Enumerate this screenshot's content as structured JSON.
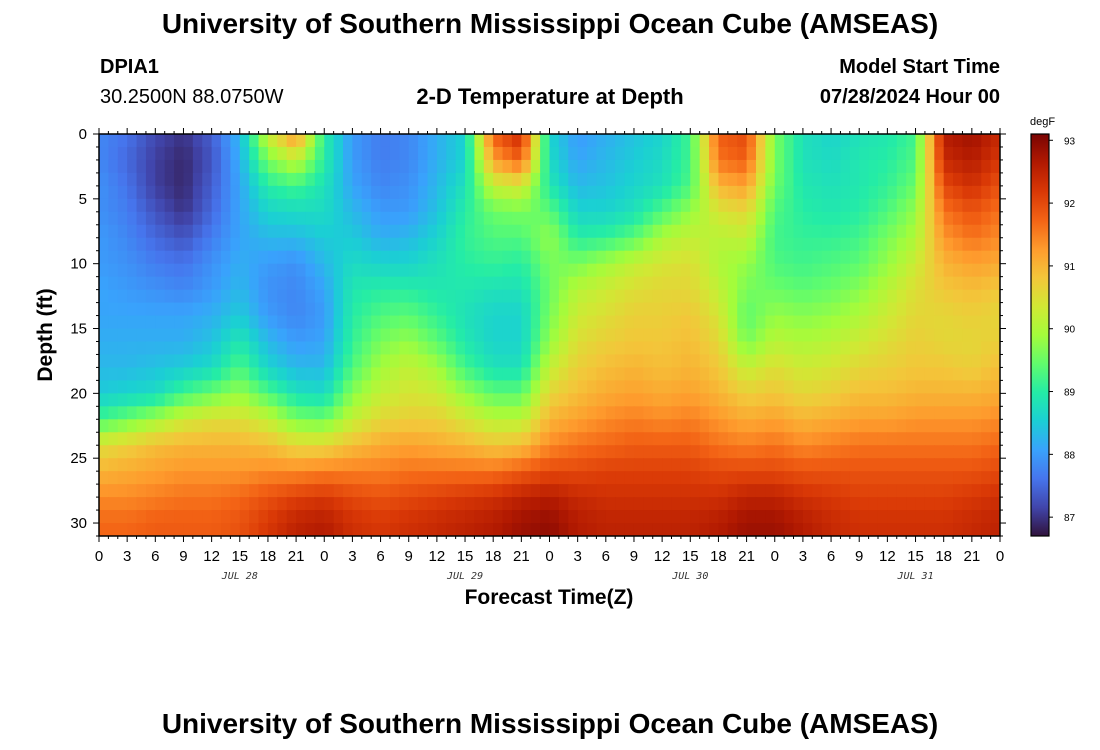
{
  "header": {
    "title": "University of Southern Mississippi Ocean Cube (AMSEAS)",
    "station_id": "DPIA1",
    "station_coords": "30.2500N  88.0750W",
    "subtitle": "2-D Temperature at Depth",
    "model_start_label": "Model Start Time",
    "model_start_value": "07/28/2024 Hour 00"
  },
  "footer": {
    "title": "University of Southern Mississippi Ocean Cube (AMSEAS)"
  },
  "chart_data": {
    "type": "heatmap",
    "title": "2-D Temperature at Depth",
    "xlabel": "Forecast Time(Z)",
    "ylabel": "Depth (ft)",
    "x_ticks": [
      "0",
      "3",
      "6",
      "9",
      "12",
      "15",
      "18",
      "21",
      "0",
      "3",
      "6",
      "9",
      "12",
      "15",
      "18",
      "21",
      "0",
      "3",
      "6",
      "9",
      "12",
      "15",
      "18",
      "21",
      "0",
      "3",
      "6",
      "9",
      "12",
      "15",
      "18",
      "21",
      "0"
    ],
    "date_labels": [
      {
        "label": "JUL 28",
        "hour": 15
      },
      {
        "label": "JUL 29",
        "hour": 39
      },
      {
        "label": "JUL 30",
        "hour": 63
      },
      {
        "label": "JUL 31",
        "hour": 87
      }
    ],
    "y_ticks": [
      0,
      5,
      10,
      15,
      20,
      25,
      30
    ],
    "xlim_hours": [
      0,
      96
    ],
    "ylim_ft": [
      0,
      31
    ],
    "colorbar": {
      "unit": "degF",
      "min": 86.7,
      "max": 93.1,
      "ticks": [
        87,
        88,
        89,
        90,
        91,
        92,
        93
      ],
      "colors": [
        "#30123b",
        "#4145ab",
        "#4675ed",
        "#39a2fc",
        "#1bcfd4",
        "#24eca6",
        "#61fc6c",
        "#a4fc3b",
        "#d1e834",
        "#f3c63a",
        "#fe9b2d",
        "#f36315",
        "#d93806",
        "#b11901",
        "#7a0403"
      ]
    },
    "series_description": "Temperature (degF) by depth row and forecast hour",
    "depths_ft": [
      0,
      2,
      4,
      6,
      8,
      10,
      12,
      14,
      16,
      18,
      20,
      22,
      24,
      26,
      28,
      30
    ],
    "hours": [
      0,
      3,
      6,
      9,
      12,
      15,
      18,
      21,
      24,
      27,
      30,
      33,
      36,
      39,
      42,
      45,
      48,
      51,
      54,
      57,
      60,
      63,
      66,
      69,
      72,
      75,
      78,
      81,
      84,
      87,
      90,
      93,
      96
    ],
    "values": [
      [
        87.8,
        87.6,
        87.2,
        87.0,
        87.4,
        88.3,
        90.3,
        91.4,
        89.0,
        88.0,
        87.7,
        87.8,
        88.2,
        88.6,
        91.8,
        92.4,
        88.6,
        88.0,
        88.2,
        88.4,
        88.6,
        89.2,
        91.8,
        92.0,
        89.6,
        88.8,
        88.6,
        88.8,
        88.9,
        89.2,
        92.6,
        92.8,
        92.4
      ],
      [
        87.8,
        87.5,
        87.1,
        86.9,
        87.3,
        88.2,
        89.6,
        90.2,
        89.0,
        88.0,
        87.7,
        87.8,
        88.2,
        88.6,
        91.2,
        91.8,
        88.7,
        88.1,
        88.3,
        88.5,
        88.7,
        89.2,
        91.6,
        91.8,
        89.6,
        88.8,
        88.7,
        88.9,
        89.0,
        89.3,
        92.4,
        92.6,
        92.2
      ],
      [
        87.9,
        87.6,
        87.1,
        86.9,
        87.4,
        88.1,
        89.0,
        89.2,
        88.8,
        88.1,
        87.8,
        87.9,
        88.3,
        88.8,
        90.2,
        90.4,
        88.9,
        88.3,
        88.4,
        88.6,
        88.8,
        89.3,
        91.0,
        91.2,
        89.5,
        88.9,
        88.8,
        88.9,
        89.1,
        89.5,
        92.0,
        92.3,
        91.9
      ],
      [
        87.9,
        87.7,
        87.3,
        87.0,
        87.5,
        88.1,
        88.6,
        88.7,
        88.7,
        88.3,
        88.0,
        88.0,
        88.4,
        89.0,
        89.5,
        89.6,
        89.4,
        88.6,
        88.6,
        88.8,
        89.3,
        89.8,
        90.4,
        90.6,
        89.3,
        89.0,
        88.9,
        89.0,
        89.3,
        89.8,
        91.6,
        91.9,
        91.6
      ],
      [
        88.0,
        87.8,
        87.5,
        87.3,
        87.7,
        88.1,
        88.3,
        88.3,
        88.5,
        88.5,
        88.2,
        88.3,
        88.6,
        89.1,
        89.3,
        89.3,
        89.8,
        89.0,
        89.1,
        89.4,
        90.0,
        90.2,
        90.1,
        90.2,
        89.2,
        89.1,
        89.1,
        89.2,
        89.6,
        90.0,
        91.3,
        91.6,
        91.4
      ],
      [
        88.0,
        87.9,
        87.7,
        87.6,
        87.9,
        88.2,
        88.0,
        87.9,
        88.3,
        88.7,
        88.6,
        88.6,
        88.8,
        89.0,
        89.1,
        89.0,
        89.6,
        89.6,
        89.9,
        90.2,
        90.4,
        90.5,
        90.0,
        89.8,
        89.3,
        89.2,
        89.3,
        89.4,
        89.8,
        90.3,
        91.0,
        91.2,
        91.1
      ],
      [
        88.1,
        88.0,
        87.9,
        87.8,
        88.0,
        88.3,
        87.9,
        87.8,
        88.1,
        88.9,
        89.0,
        89.0,
        88.9,
        88.9,
        88.8,
        88.8,
        89.5,
        90.1,
        90.3,
        90.5,
        90.6,
        90.6,
        90.2,
        89.6,
        89.5,
        89.4,
        89.5,
        89.7,
        90.1,
        90.5,
        90.8,
        90.9,
        90.8
      ],
      [
        88.1,
        88.1,
        88.1,
        88.1,
        88.2,
        88.5,
        88.0,
        87.8,
        88.0,
        89.0,
        89.3,
        89.4,
        89.1,
        88.8,
        88.6,
        88.6,
        89.6,
        90.3,
        90.5,
        90.7,
        90.7,
        90.8,
        90.4,
        89.4,
        89.8,
        89.7,
        89.8,
        90.0,
        90.3,
        90.6,
        90.6,
        90.7,
        90.6
      ],
      [
        88.2,
        88.2,
        88.2,
        88.2,
        88.4,
        88.9,
        88.3,
        88.0,
        88.1,
        89.1,
        89.6,
        89.8,
        89.4,
        88.9,
        88.6,
        88.6,
        89.8,
        90.5,
        90.7,
        90.8,
        90.8,
        90.9,
        90.6,
        89.6,
        90.1,
        90.0,
        90.1,
        90.3,
        90.5,
        90.7,
        90.6,
        90.6,
        90.7
      ],
      [
        88.3,
        88.3,
        88.4,
        88.5,
        88.7,
        89.3,
        88.6,
        88.3,
        88.3,
        89.3,
        89.9,
        90.2,
        89.9,
        89.2,
        88.8,
        88.8,
        90.2,
        90.7,
        90.9,
        91.0,
        90.9,
        91.0,
        90.8,
        90.2,
        90.5,
        90.3,
        90.4,
        90.6,
        90.7,
        90.8,
        90.8,
        90.7,
        90.9
      ],
      [
        88.5,
        88.6,
        88.7,
        89.2,
        89.5,
        89.8,
        89.3,
        88.8,
        88.7,
        89.7,
        90.2,
        90.4,
        90.3,
        89.8,
        89.4,
        89.4,
        90.6,
        90.9,
        91.1,
        91.2,
        91.1,
        91.2,
        91.0,
        90.7,
        90.8,
        90.6,
        90.7,
        90.9,
        90.9,
        91.0,
        91.0,
        91.0,
        91.1
      ],
      [
        89.2,
        89.5,
        89.9,
        90.3,
        90.5,
        90.5,
        90.2,
        89.6,
        89.5,
        90.2,
        90.6,
        90.7,
        90.7,
        90.4,
        90.1,
        90.1,
        91.0,
        91.2,
        91.4,
        91.5,
        91.4,
        91.5,
        91.3,
        91.1,
        91.2,
        91.0,
        91.1,
        91.2,
        91.2,
        91.3,
        91.3,
        91.3,
        91.4
      ],
      [
        90.5,
        90.7,
        90.9,
        91.0,
        91.0,
        91.0,
        90.9,
        90.6,
        90.6,
        90.9,
        91.1,
        91.2,
        91.1,
        91.0,
        90.8,
        90.9,
        91.4,
        91.6,
        91.7,
        91.8,
        91.8,
        91.8,
        91.6,
        91.5,
        91.6,
        91.4,
        91.5,
        91.6,
        91.6,
        91.6,
        91.6,
        91.6,
        91.7
      ],
      [
        91.0,
        91.1,
        91.2,
        91.3,
        91.3,
        91.3,
        91.4,
        91.4,
        91.5,
        91.5,
        91.5,
        91.6,
        91.6,
        91.6,
        91.6,
        91.8,
        92.0,
        92.0,
        92.1,
        92.1,
        92.1,
        92.1,
        92.0,
        92.0,
        92.0,
        91.9,
        91.9,
        91.9,
        91.9,
        91.9,
        91.9,
        91.9,
        92.0
      ],
      [
        91.4,
        91.4,
        91.5,
        91.6,
        91.6,
        91.7,
        91.9,
        92.1,
        92.2,
        92.0,
        91.9,
        92.0,
        92.1,
        92.2,
        92.3,
        92.5,
        92.6,
        92.4,
        92.3,
        92.3,
        92.3,
        92.3,
        92.3,
        92.5,
        92.5,
        92.3,
        92.2,
        92.1,
        92.1,
        92.1,
        92.1,
        92.2,
        92.3
      ],
      [
        91.7,
        91.7,
        91.8,
        91.8,
        91.8,
        91.9,
        92.2,
        92.5,
        92.6,
        92.3,
        92.2,
        92.3,
        92.4,
        92.5,
        92.6,
        92.8,
        92.9,
        92.6,
        92.5,
        92.5,
        92.5,
        92.5,
        92.6,
        92.8,
        92.8,
        92.6,
        92.4,
        92.3,
        92.3,
        92.3,
        92.3,
        92.4,
        92.5
      ]
    ]
  }
}
